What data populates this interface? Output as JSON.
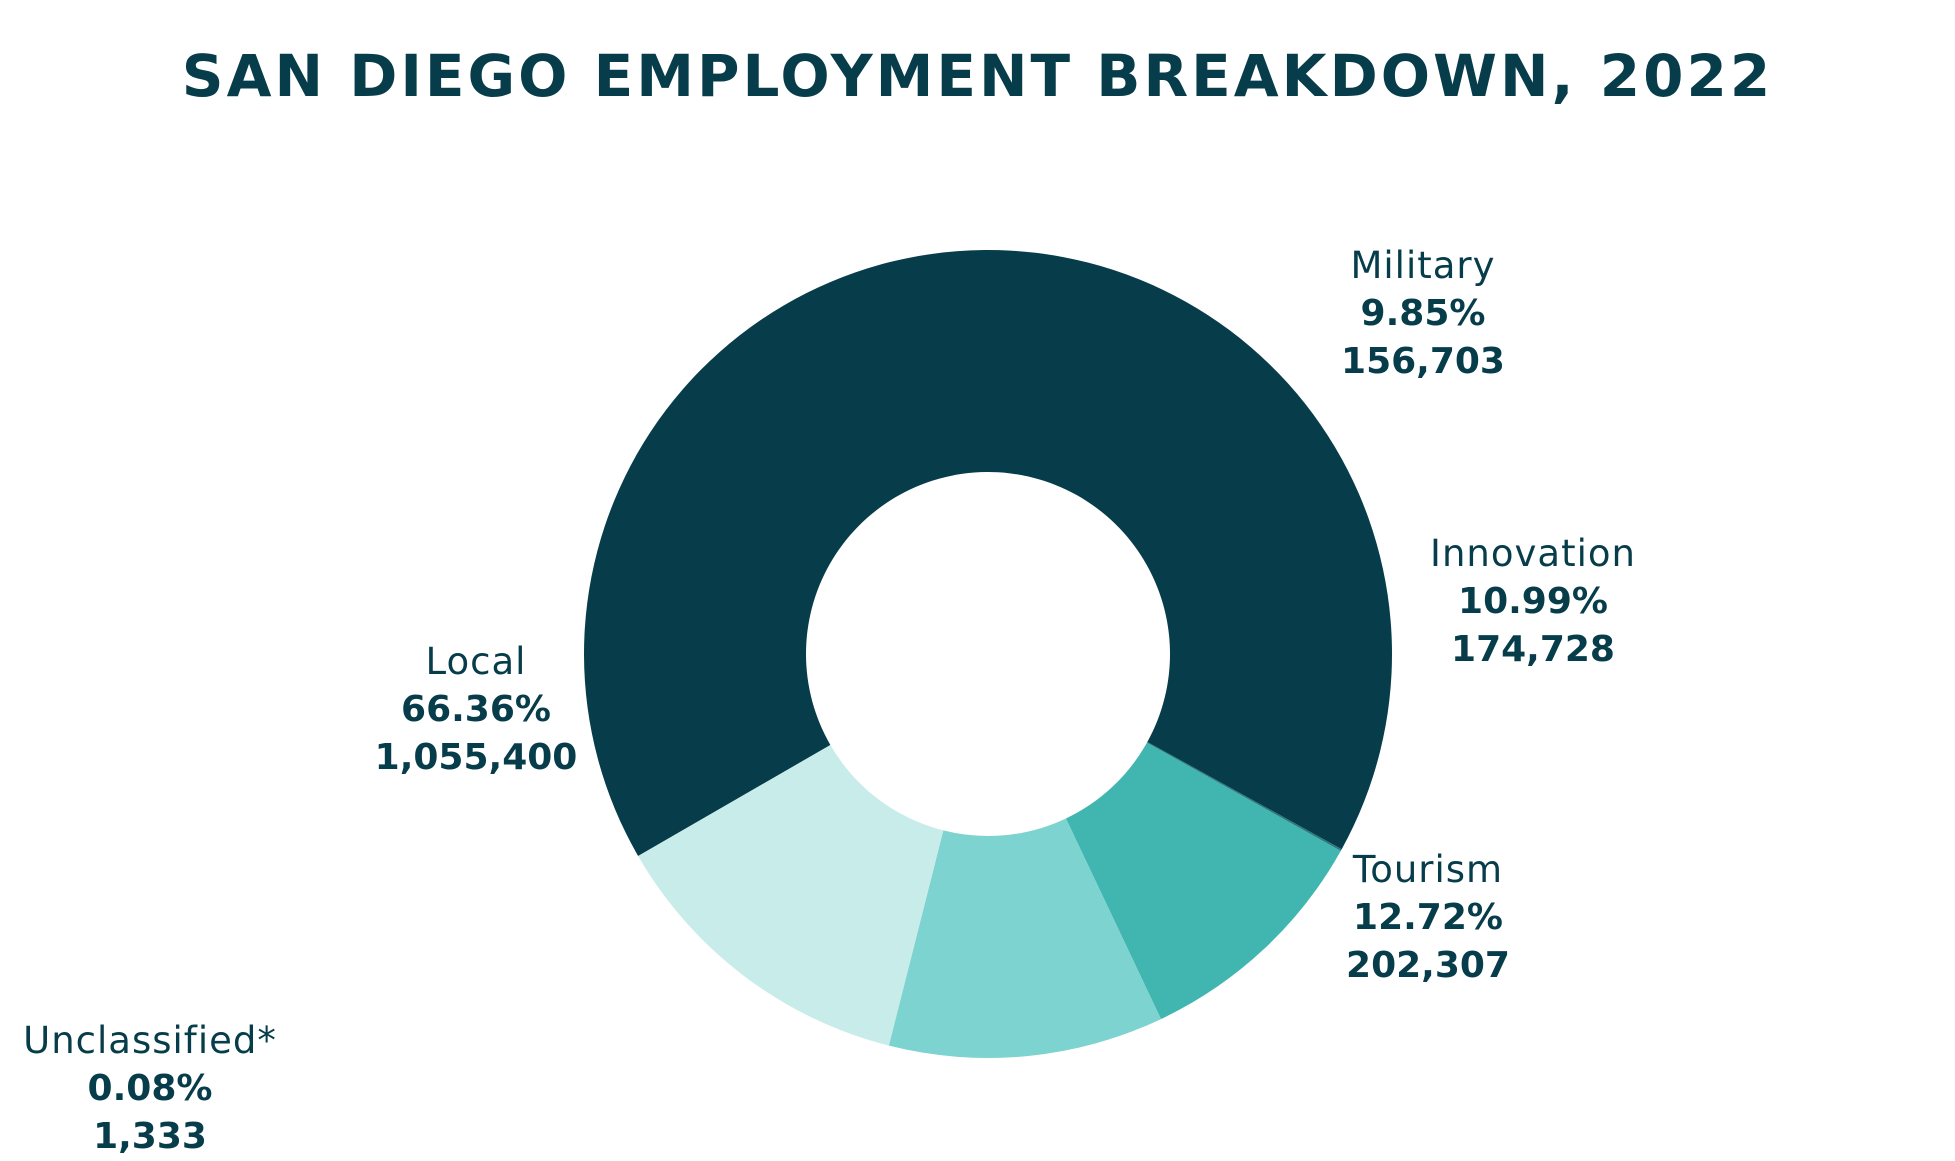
{
  "chart_data": {
    "type": "pie",
    "title": "SAN DIEGO EMPLOYMENT BREAKDOWN, 2022",
    "donut": true,
    "slices": [
      {
        "id": "local",
        "label": "Local",
        "percent": 66.36,
        "percent_label": "66.36%",
        "count_label": "1,055,400",
        "value": 1055400,
        "color": "#073d4a"
      },
      {
        "id": "military",
        "label": "Military",
        "percent": 9.85,
        "percent_label": "9.85%",
        "count_label": "156,703",
        "value": 156703,
        "color": "#41b5b0"
      },
      {
        "id": "innovation",
        "label": "Innovation",
        "percent": 10.99,
        "percent_label": "10.99%",
        "count_label": "174,728",
        "value": 174728,
        "color": "#7dd3cf"
      },
      {
        "id": "tourism",
        "label": "Tourism",
        "percent": 12.72,
        "percent_label": "12.72%",
        "count_label": "202,307",
        "value": 202307,
        "color": "#c8ece9"
      },
      {
        "id": "unclassified",
        "label": "Unclassified*",
        "percent": 0.08,
        "percent_label": "0.08%",
        "count_label": "1,333",
        "value": 1333,
        "color": "#2a7b80"
      }
    ]
  }
}
